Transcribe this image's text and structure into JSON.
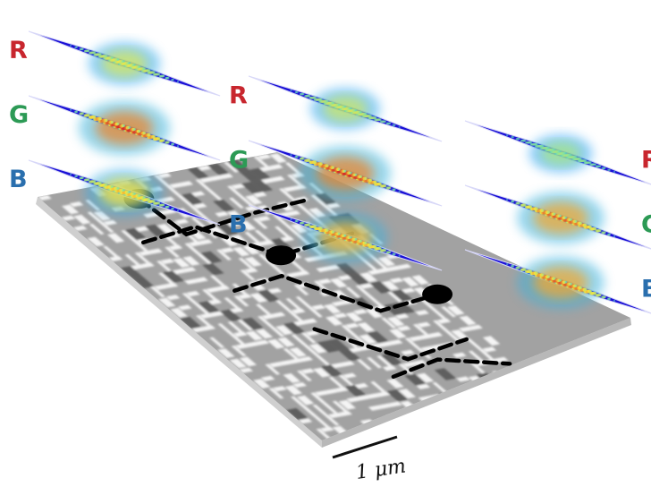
{
  "colors": {
    "label_r": "#c8262e",
    "label_g": "#2c9a55",
    "label_b": "#2a6fae",
    "field_base": "#1a10d6",
    "field_deep": "#0c06a8",
    "chip_base": "#9a9a9a",
    "chip_pattern": "#f4f4f4",
    "waveguide": "#000000"
  },
  "icons": {
    "chip": "metasurface-chip-icon",
    "field": "field-intensity-icon",
    "scale": "scale-bar-icon"
  },
  "stacks": [
    {
      "id": "left",
      "panels": [
        {
          "label": "R",
          "channel": "red",
          "hot": 0.55
        },
        {
          "label": "G",
          "channel": "green",
          "hot": 1.0
        },
        {
          "label": "B",
          "channel": "blue",
          "hot": 0.7
        }
      ]
    },
    {
      "id": "middle",
      "panels": [
        {
          "label": "R",
          "channel": "red",
          "hot": 0.5
        },
        {
          "label": "G",
          "channel": "green",
          "hot": 1.0
        },
        {
          "label": "B",
          "channel": "blue",
          "hot": 0.85
        }
      ]
    },
    {
      "id": "right",
      "panels": [
        {
          "label": "R",
          "channel": "red",
          "hot": 0.35
        },
        {
          "label": "G",
          "channel": "green",
          "hot": 0.9
        },
        {
          "label": "B",
          "channel": "blue",
          "hot": 0.9
        }
      ]
    }
  ],
  "scale_bar": {
    "label": "1 μm"
  }
}
